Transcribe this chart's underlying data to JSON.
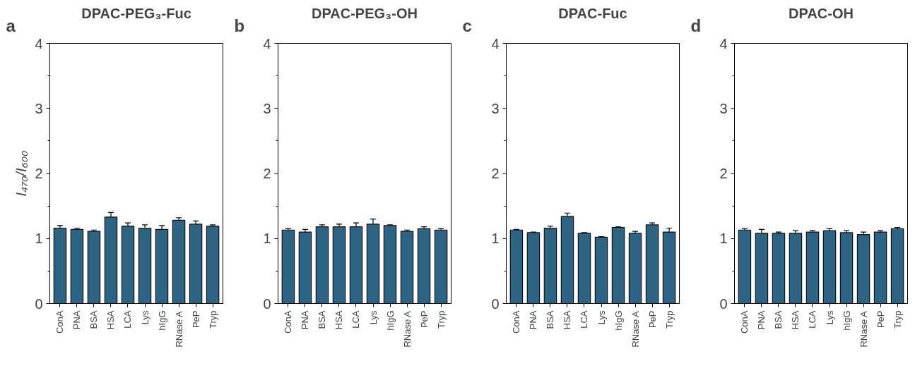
{
  "chart_data": [
    {
      "type": "bar",
      "title": "DPAC-PEG₃-Fuc",
      "ylabel": "I₄₇₀/I₆₀₀",
      "annotations": [
        "a"
      ],
      "categories": [
        "ConA",
        "PNA",
        "BSA",
        "HSA",
        "LCA",
        "Lys",
        "hIgG",
        "RNase A",
        "PeP",
        "Tryp"
      ],
      "color": "#2e6483",
      "values": [
        1.16,
        1.14,
        1.11,
        1.33,
        1.19,
        1.16,
        1.14,
        1.28,
        1.22,
        1.19
      ],
      "errors": [
        0.04,
        0.02,
        0.02,
        0.07,
        0.05,
        0.05,
        0.06,
        0.04,
        0.05,
        0.02
      ],
      "ylim": [
        0,
        4
      ],
      "yticks": [
        0,
        {
          "value": 0.5,
          "label": null
        },
        1,
        {
          "value": 1.5,
          "label": null
        },
        2,
        {
          "value": 2.5,
          "label": null
        },
        3,
        {
          "value": 3.5,
          "label": null
        },
        4
      ],
      "grid": false
    },
    {
      "type": "bar",
      "title": "DPAC-PEG₃-OH",
      "annotations": [
        "b"
      ],
      "categories": [
        "ConA",
        "PNA",
        "BSA",
        "HSA",
        "LCA",
        "Lys",
        "hIgG",
        "RNase A",
        "PeP",
        "Tryp"
      ],
      "color": "#2e6483",
      "values": [
        1.13,
        1.1,
        1.18,
        1.18,
        1.18,
        1.22,
        1.2,
        1.11,
        1.15,
        1.13
      ],
      "errors": [
        0.02,
        0.04,
        0.03,
        0.04,
        0.06,
        0.08,
        0.01,
        0.02,
        0.03,
        0.02
      ],
      "ylim": [
        0,
        4
      ],
      "yticks": [
        0,
        {
          "value": 0.5,
          "label": null
        },
        1,
        {
          "value": 1.5,
          "label": null
        },
        2,
        {
          "value": 2.5,
          "label": null
        },
        3,
        {
          "value": 3.5,
          "label": null
        },
        4
      ],
      "grid": false
    },
    {
      "type": "bar",
      "title": "DPAC-Fuc",
      "annotations": [
        "c"
      ],
      "categories": [
        "ConA",
        "PNA",
        "BSA",
        "HSA",
        "LCA",
        "Lys",
        "hIgG",
        "RNase A",
        "PeP",
        "Tryp"
      ],
      "color": "#2e6483",
      "values": [
        1.13,
        1.09,
        1.16,
        1.34,
        1.08,
        1.02,
        1.17,
        1.08,
        1.21,
        1.1
      ],
      "errors": [
        0.01,
        0.01,
        0.03,
        0.05,
        0.01,
        0.01,
        0.01,
        0.03,
        0.03,
        0.06
      ],
      "ylim": [
        0,
        4
      ],
      "yticks": [
        0,
        {
          "value": 0.5,
          "label": null
        },
        1,
        {
          "value": 1.5,
          "label": null
        },
        2,
        {
          "value": 2.5,
          "label": null
        },
        3,
        {
          "value": 3.5,
          "label": null
        },
        4
      ],
      "grid": false
    },
    {
      "type": "bar",
      "title": "DPAC-OH",
      "annotations": [
        "d"
      ],
      "categories": [
        "ConA",
        "PNA",
        "BSA",
        "HSA",
        "LCA",
        "Lys",
        "hIgG",
        "RNase A",
        "PeP",
        "Tryp"
      ],
      "color": "#2e6483",
      "values": [
        1.13,
        1.08,
        1.08,
        1.08,
        1.1,
        1.12,
        1.09,
        1.06,
        1.1,
        1.15
      ],
      "errors": [
        0.02,
        0.06,
        0.02,
        0.04,
        0.02,
        0.03,
        0.03,
        0.04,
        0.02,
        0.02
      ],
      "ylim": [
        0,
        4
      ],
      "yticks": [
        0,
        {
          "value": 0.5,
          "label": null
        },
        1,
        {
          "value": 1.5,
          "label": null
        },
        2,
        {
          "value": 2.5,
          "label": null
        },
        3,
        {
          "value": 3.5,
          "label": null
        },
        4
      ],
      "grid": false
    }
  ]
}
